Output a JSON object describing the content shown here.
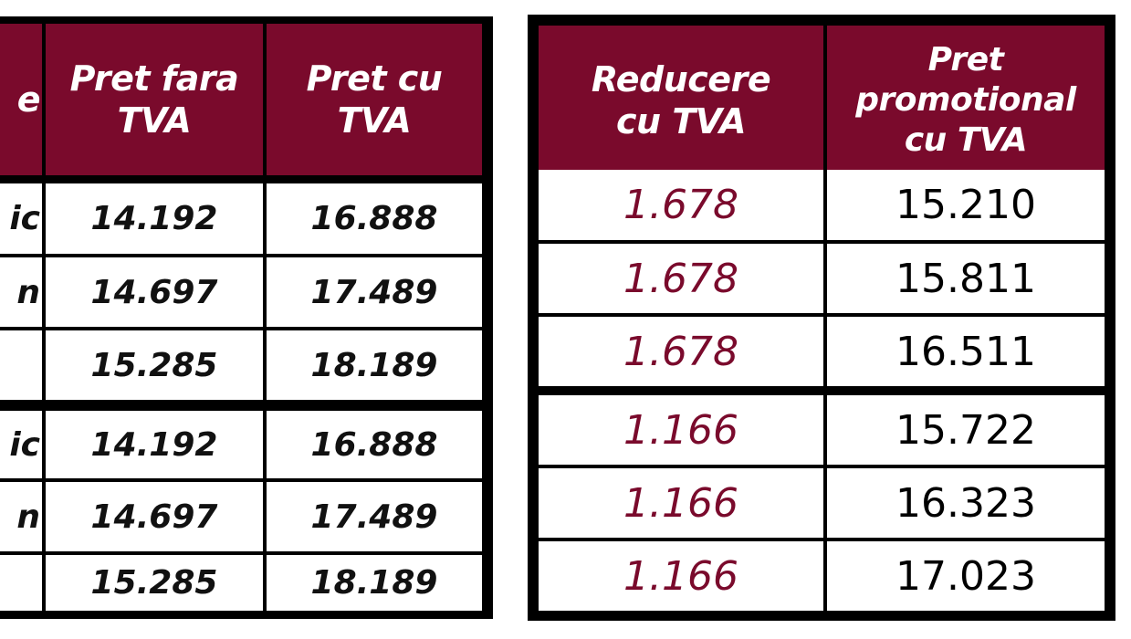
{
  "left_table": {
    "headers": [
      "e",
      "Pret fara TVA",
      "Pret cu TVA"
    ],
    "header_lines": [
      [
        "e"
      ],
      [
        "Pret fara",
        "TVA"
      ],
      [
        "Pret cu",
        "TVA"
      ]
    ],
    "rows": [
      [
        "ic",
        "14.192",
        "16.888"
      ],
      [
        "n",
        "14.697",
        "17.489"
      ],
      [
        "",
        "15.285",
        "18.189"
      ],
      [
        "ic",
        "14.192",
        "16.888"
      ],
      [
        "n",
        "14.697",
        "17.489"
      ],
      [
        "",
        "15.285",
        "18.189"
      ]
    ]
  },
  "right_table": {
    "headers": [
      "Reducere cu TVA",
      "Pret promotional cu TVA"
    ],
    "header_lines": [
      [
        "Reducere",
        "cu TVA"
      ],
      [
        "Pret",
        "promotional",
        "cu TVA"
      ]
    ],
    "rows": [
      [
        "1.678",
        "15.210"
      ],
      [
        "1.678",
        "15.811"
      ],
      [
        "1.678",
        "16.511"
      ],
      [
        "1.166",
        "15.722"
      ],
      [
        "1.166",
        "16.323"
      ],
      [
        "1.166",
        "17.023"
      ]
    ]
  },
  "colors": {
    "header_bg": "#7a0a2c",
    "discount_text": "#7a0a2c",
    "border": "#000000"
  }
}
